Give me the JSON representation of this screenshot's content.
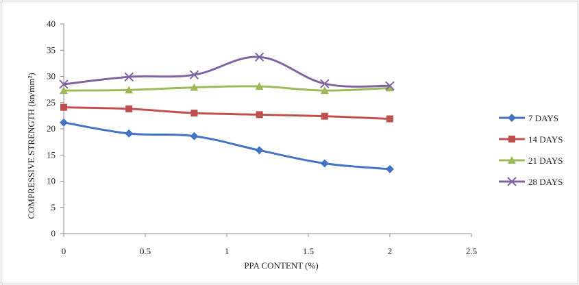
{
  "chart_data": {
    "type": "line",
    "title": "",
    "xlabel": "PPA CONTENT (%)",
    "ylabel": "COMPRESSIVE STRENGTH (kn/mm²)",
    "xlim": [
      0,
      2.5
    ],
    "ylim": [
      0,
      40
    ],
    "xticks": [
      0,
      0.5,
      1,
      1.5,
      2,
      2.5
    ],
    "xtick_labels": [
      "0",
      "0.5",
      "1",
      "1.5",
      "2",
      "2.5"
    ],
    "yticks": [
      0,
      5,
      10,
      15,
      20,
      25,
      30,
      35,
      40
    ],
    "ytick_labels": [
      "0",
      "5",
      "10",
      "15",
      "20",
      "25",
      "30",
      "35",
      "40"
    ],
    "grid": false,
    "smooth": true,
    "legend_position": "right",
    "x": [
      0,
      0.4,
      0.8,
      1.2,
      1.6,
      2
    ],
    "series": [
      {
        "name": "7 DAYS",
        "color": "#4472c4",
        "marker": "diamond",
        "values": [
          21.2,
          19.1,
          18.6,
          15.9,
          13.4,
          12.3
        ]
      },
      {
        "name": "14 DAYS",
        "color": "#c0504d",
        "marker": "square",
        "values": [
          24.1,
          23.8,
          23.0,
          22.7,
          22.4,
          21.9
        ]
      },
      {
        "name": "21 DAYS",
        "color": "#9bbb59",
        "marker": "triangle",
        "values": [
          27.3,
          27.4,
          27.9,
          28.1,
          27.3,
          27.8
        ]
      },
      {
        "name": "28 DAYS",
        "color": "#8064a2",
        "marker": "x",
        "values": [
          28.5,
          29.9,
          30.3,
          33.7,
          28.6,
          28.2
        ]
      }
    ]
  }
}
